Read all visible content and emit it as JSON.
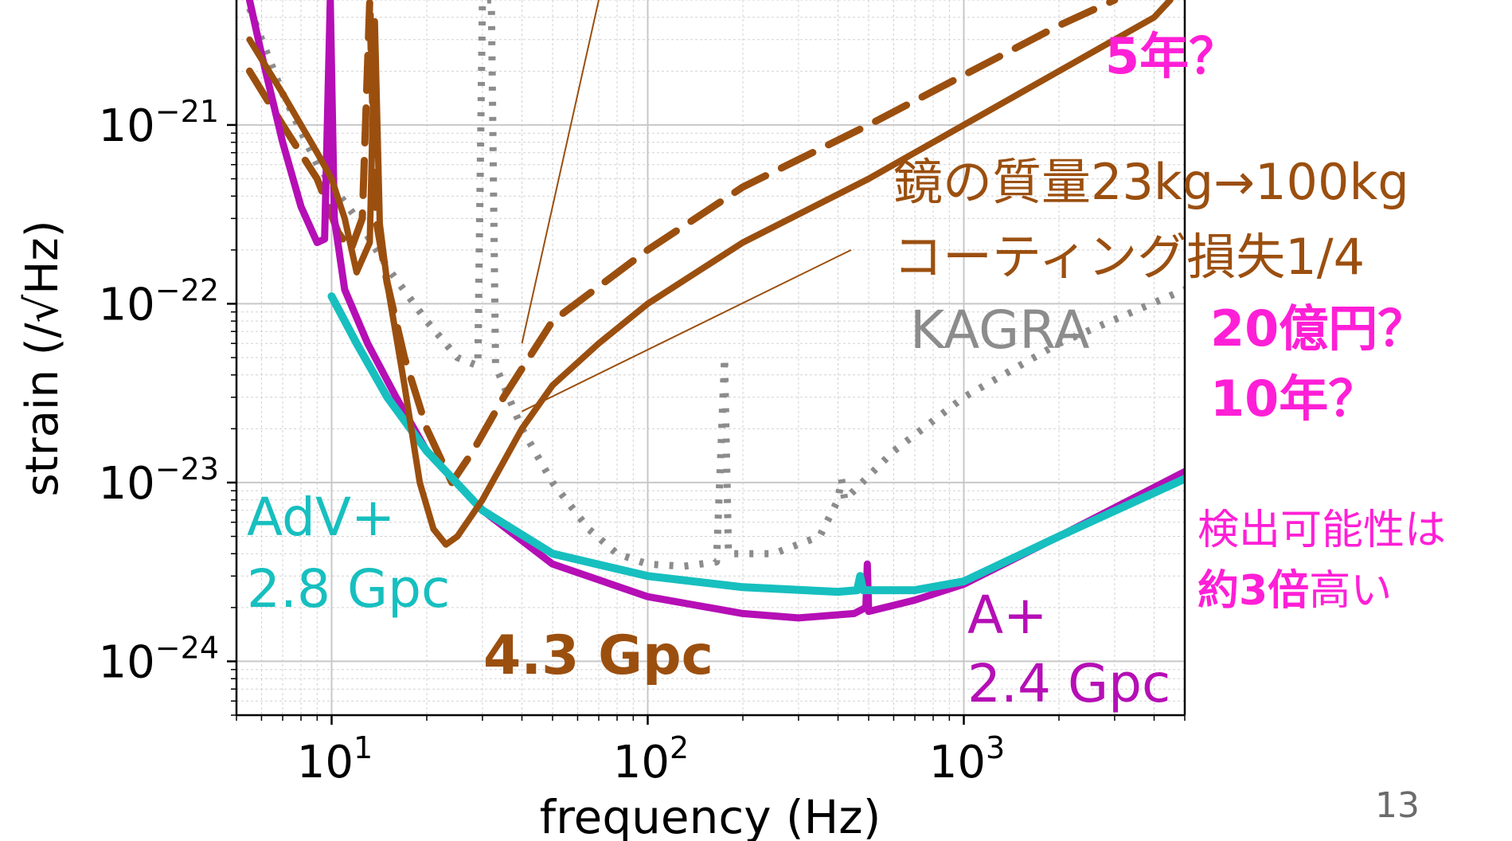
{
  "colors": {
    "kagra": "#8c8c8c",
    "new_design": "#9b4f0f",
    "adv_plus": "#17bfbf",
    "a_plus": "#b50fb5",
    "magenta_text": "#ff1fd6",
    "axis": "#000000",
    "grid": "#d2d2d2"
  },
  "labels": {
    "kagra": "KAGRA",
    "adv_plus_name": "AdV+",
    "adv_plus_range": "2.8 Gpc",
    "new_range": "4.3 Gpc",
    "a_plus_name": "A+",
    "a_plus_range": "2.4 Gpc",
    "mirror_mass": "鏡の質量23kg→100kg",
    "coating_loss": "コーティング損失1/4",
    "years_a": "5年？",
    "cost": "20億円？",
    "years_b": "10年？",
    "detect_line1": "検出可能性は",
    "detect_bold": "約3倍",
    "detect_rest": "高い",
    "page_number": "13"
  },
  "chart_data": {
    "type": "line",
    "xlabel": "frequency (Hz)",
    "ylabel": "strain (/√Hz)",
    "xscale": "log",
    "yscale": "log",
    "xlim": [
      5,
      5000
    ],
    "ylim": [
      5e-25,
      5e-21
    ],
    "grid": true,
    "x_ticks": [
      10,
      100,
      1000
    ],
    "x_tick_labels": [
      {
        "base": "10",
        "exp": "1"
      },
      {
        "base": "10",
        "exp": "2"
      },
      {
        "base": "10",
        "exp": "3"
      }
    ],
    "y_ticks": [
      1e-24,
      1e-23,
      1e-22,
      1e-21
    ],
    "y_tick_labels": [
      {
        "base": "10",
        "exp": "−24"
      },
      {
        "base": "10",
        "exp": "−23"
      },
      {
        "base": "10",
        "exp": "−22"
      },
      {
        "base": "10",
        "exp": "−21"
      }
    ],
    "series": [
      {
        "name": "KAGRA",
        "color": "#8c8c8c",
        "style": "dotted",
        "points": [
          [
            5.5,
            4.5e-21
          ],
          [
            7,
            1.5e-21
          ],
          [
            9,
            6e-22
          ],
          [
            12,
            3e-22
          ],
          [
            15,
            1.6e-22
          ],
          [
            20,
            8e-23
          ],
          [
            25,
            5e-23
          ],
          [
            29,
            4.5e-23
          ],
          [
            30,
            5e-21
          ],
          [
            32,
            5e-21
          ],
          [
            33,
            4.5e-23
          ],
          [
            40,
            2e-23
          ],
          [
            50,
            1e-23
          ],
          [
            65,
            5.5e-24
          ],
          [
            80,
            4e-24
          ],
          [
            100,
            3.5e-24
          ],
          [
            130,
            3.4e-24
          ],
          [
            165,
            3.6e-24
          ],
          [
            175,
            5e-23
          ],
          [
            180,
            4e-24
          ],
          [
            250,
            4e-24
          ],
          [
            350,
            5e-24
          ],
          [
            400,
            8e-24
          ],
          [
            410,
            1.05e-23
          ],
          [
            420,
            8e-24
          ],
          [
            600,
            1.5e-23
          ],
          [
            1000,
            3e-23
          ],
          [
            2000,
            6e-23
          ],
          [
            5000,
            1.2e-22
          ]
        ]
      },
      {
        "name": "A+",
        "color": "#b50fb5",
        "style": "solid",
        "points": [
          [
            5.5,
            5e-21
          ],
          [
            6,
            2.5e-21
          ],
          [
            7,
            8e-22
          ],
          [
            8,
            3.5e-22
          ],
          [
            9,
            2.2e-22
          ],
          [
            9.5,
            2.3e-22
          ],
          [
            9.9,
            5e-21
          ],
          [
            10.2,
            3e-22
          ],
          [
            11,
            1.2e-22
          ],
          [
            13,
            6e-23
          ],
          [
            16,
            3e-23
          ],
          [
            20,
            1.5e-23
          ],
          [
            30,
            7e-24
          ],
          [
            50,
            3.5e-24
          ],
          [
            100,
            2.3e-24
          ],
          [
            200,
            1.85e-24
          ],
          [
            300,
            1.75e-24
          ],
          [
            450,
            1.85e-24
          ],
          [
            490,
            2e-24
          ],
          [
            495,
            3.5e-24
          ],
          [
            500,
            1.9e-24
          ],
          [
            700,
            2.2e-24
          ],
          [
            1000,
            2.7e-24
          ],
          [
            2000,
            5e-24
          ],
          [
            5000,
            1.15e-23
          ]
        ]
      },
      {
        "name": "AdV+",
        "color": "#17bfbf",
        "style": "solid",
        "points": [
          [
            10,
            1.1e-22
          ],
          [
            12,
            6e-23
          ],
          [
            15,
            3e-23
          ],
          [
            20,
            1.5e-23
          ],
          [
            30,
            7e-24
          ],
          [
            50,
            4e-24
          ],
          [
            100,
            3e-24
          ],
          [
            200,
            2.6e-24
          ],
          [
            400,
            2.45e-24
          ],
          [
            460,
            2.5e-24
          ],
          [
            470,
            3e-24
          ],
          [
            480,
            2.5e-24
          ],
          [
            700,
            2.5e-24
          ],
          [
            1000,
            2.8e-24
          ],
          [
            2000,
            5e-24
          ],
          [
            5000,
            1.05e-23
          ]
        ]
      },
      {
        "name": "mirror 100 kg",
        "color": "#9b4f0f",
        "style": "dashed",
        "points": [
          [
            5.5,
            2e-21
          ],
          [
            7,
            1e-21
          ],
          [
            9,
            5e-22
          ],
          [
            10.5,
            2.5e-22
          ],
          [
            11.5,
            2e-22
          ],
          [
            12.5,
            3e-22
          ],
          [
            13.2,
            5e-21
          ],
          [
            13.8,
            3e-22
          ],
          [
            15,
            1.3e-22
          ],
          [
            17,
            5e-23
          ],
          [
            20,
            2e-23
          ],
          [
            24,
            1e-23
          ],
          [
            28,
            1.5e-23
          ],
          [
            35,
            3e-23
          ],
          [
            50,
            8e-23
          ],
          [
            100,
            2e-22
          ],
          [
            200,
            4.5e-22
          ],
          [
            500,
            1e-21
          ],
          [
            1000,
            1.9e-21
          ],
          [
            2000,
            3.6e-21
          ],
          [
            3000,
            5e-21
          ]
        ]
      },
      {
        "name": "mirror 100 kg + coating 1/4",
        "color": "#9b4f0f",
        "style": "solid",
        "points": [
          [
            5.5,
            3e-21
          ],
          [
            7,
            1.5e-21
          ],
          [
            9,
            7e-22
          ],
          [
            10,
            5e-22
          ],
          [
            11,
            3e-22
          ],
          [
            12,
            1.5e-22
          ],
          [
            13.2,
            2.2e-22
          ],
          [
            13.7,
            3.8e-21
          ],
          [
            14.2,
            2.8e-22
          ],
          [
            15,
            1.3e-22
          ],
          [
            17,
            3.5e-23
          ],
          [
            19,
            1e-23
          ],
          [
            21,
            5.5e-24
          ],
          [
            23,
            4.5e-24
          ],
          [
            25,
            5e-24
          ],
          [
            30,
            8e-24
          ],
          [
            40,
            2e-23
          ],
          [
            50,
            3.5e-23
          ],
          [
            70,
            6e-23
          ],
          [
            100,
            1e-22
          ],
          [
            200,
            2.2e-22
          ],
          [
            500,
            5e-22
          ],
          [
            1000,
            1e-21
          ],
          [
            2000,
            2e-21
          ],
          [
            4000,
            4e-21
          ],
          [
            4500,
            5e-21
          ]
        ]
      }
    ],
    "annotations": [
      {
        "from": [
          40,
          6e-23
        ],
        "to": [
          70,
          5e-21
        ]
      },
      {
        "from": [
          40,
          2.5e-23
        ],
        "to": [
          440,
          2e-22
        ]
      }
    ]
  }
}
